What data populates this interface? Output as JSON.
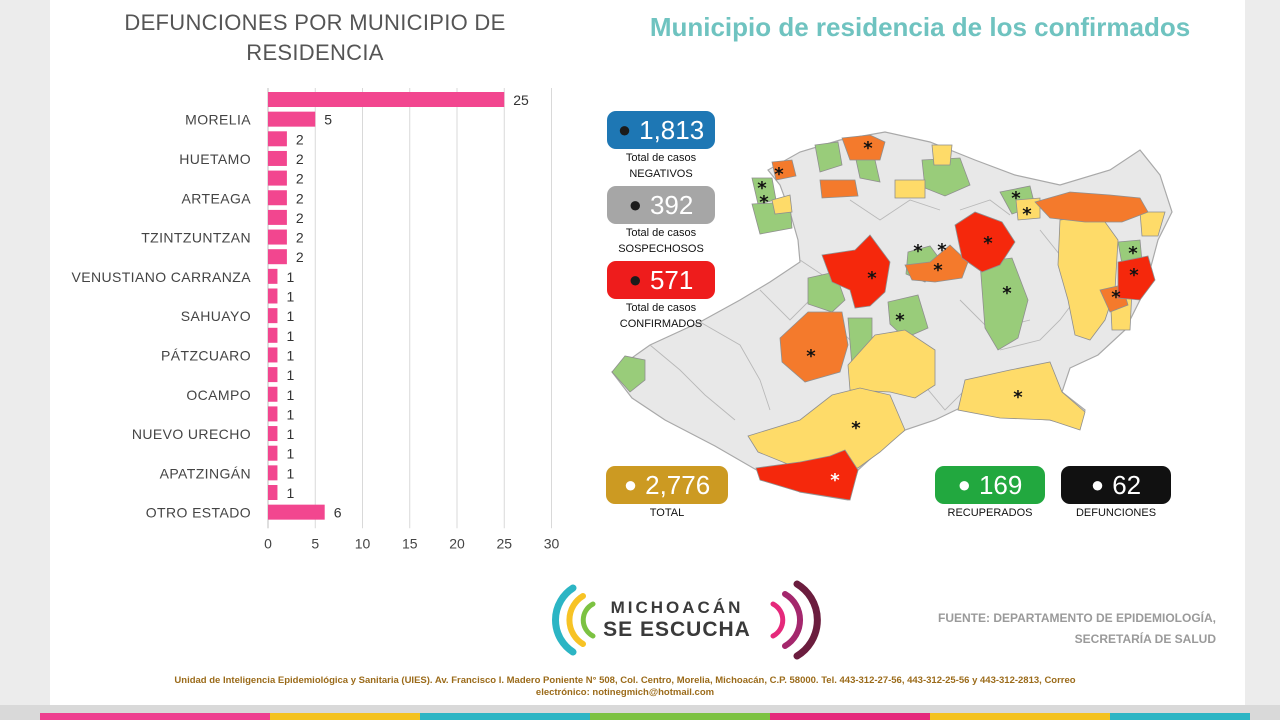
{
  "chart_data": {
    "type": "bar",
    "orientation": "horizontal",
    "title": "DEFUNCIONES POR MUNICIPIO DE RESIDENCIA",
    "categories": [
      "",
      "MORELIA",
      "",
      "HUETAMO",
      "",
      "ARTEAGA",
      "",
      "TZINTZUNTZAN",
      "",
      "VENUSTIANO CARRANZA",
      "",
      "SAHUAYO",
      "",
      "PÁTZCUARO",
      "",
      "OCAMPO",
      "",
      "NUEVO URECHO",
      "",
      "APATZINGÁN",
      "",
      "OTRO ESTADO"
    ],
    "values": [
      25,
      5,
      2,
      2,
      2,
      2,
      2,
      2,
      2,
      1,
      1,
      1,
      1,
      1,
      1,
      1,
      1,
      1,
      1,
      1,
      1,
      6
    ],
    "xlim": [
      0,
      30
    ],
    "xticks": [
      0,
      5,
      10,
      15,
      20,
      25,
      30
    ],
    "grid": true,
    "bar_color": "#f2468f"
  },
  "map": {
    "title": "Municipio de residencia de los confirmados",
    "marker": "*",
    "colors": {
      "confirmed_high": "#f5280c",
      "confirmed_mid": "#f47a2c",
      "suspect": "#fedb69",
      "recovered": "#99cc7a",
      "none": "#e8e8e8"
    }
  },
  "stats": {
    "negativos": {
      "value": "1,813",
      "label1": "Total de casos",
      "label2": "NEGATIVOS",
      "color": "#1e77b4"
    },
    "sospechosos": {
      "value": "392",
      "label1": "Total de casos",
      "label2": "SOSPECHOSOS",
      "color": "#a6a6a6"
    },
    "confirmados": {
      "value": "571",
      "label1": "Total de casos",
      "label2": "CONFIRMADOS",
      "color": "#ee1c1c"
    },
    "total": {
      "value": "2,776",
      "label": "TOTAL",
      "color": "#cc9a22"
    },
    "recuperados": {
      "value": "169",
      "label": "RECUPERADOS",
      "color": "#22a83f"
    },
    "defunciones": {
      "value": "62",
      "label": "DEFUNCIONES",
      "color": "#111111"
    }
  },
  "logo": {
    "line1": "MICHOACÁN",
    "line2": "SE ESCUCHA"
  },
  "source": {
    "line1": "FUENTE: DEPARTAMENTO DE EPIDEMIOLOGÍA,",
    "line2": "SECRETARÍA DE SALUD"
  },
  "footer": {
    "line1": "Unidad de Inteligencia Epidemiológica y Sanitaria (UIES). Av. Francisco I. Madero Poniente N° 508, Col. Centro, Morelia, Michoacán, C.P. 58000. Tel. 443-312-27-56, 443-312-25-56 y 443-312-2813, Correo",
    "line2": "electrónico: notinegmich@hotmail.com"
  }
}
